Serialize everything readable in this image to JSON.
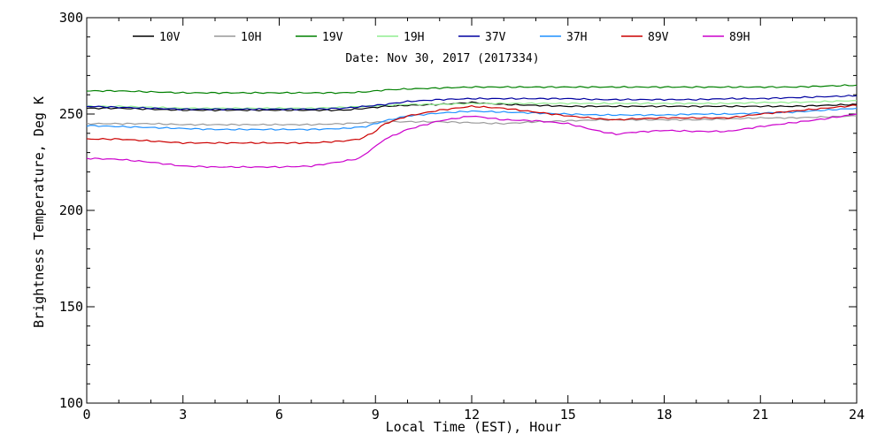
{
  "chart_data": {
    "type": "line",
    "title": "",
    "annotation": "Date: Nov 30, 2017 (2017334)",
    "xlabel": "Local Time (EST), Hour",
    "ylabel": "Brightness Temperature, Deg K",
    "xlim": [
      0,
      24
    ],
    "ylim": [
      100,
      300
    ],
    "xticks": [
      0,
      3,
      6,
      9,
      12,
      15,
      18,
      21,
      24
    ],
    "yticks": [
      100,
      150,
      200,
      250,
      300
    ],
    "grid": false,
    "legend_position": "top",
    "series": [
      {
        "name": "10V",
        "color": "#000000",
        "x": [
          0,
          1,
          2,
          3,
          4,
          5,
          6,
          7,
          8,
          8.7,
          9.3,
          10,
          11,
          12,
          13,
          14,
          15,
          16,
          17,
          18,
          19,
          20,
          21,
          22,
          23,
          24
        ],
        "y": [
          253,
          253,
          252.5,
          252,
          252,
          252,
          252,
          252,
          252,
          253,
          254,
          254.5,
          255,
          256,
          255,
          254.5,
          254,
          254,
          254,
          254,
          254,
          254,
          254,
          254,
          254.5,
          255
        ]
      },
      {
        "name": "10H",
        "color": "#999999",
        "x": [
          0,
          1,
          2,
          3,
          4,
          5,
          6,
          7,
          8,
          8.7,
          9.3,
          10,
          11,
          12,
          13,
          14,
          15,
          16,
          17,
          18,
          19,
          20,
          21,
          22,
          23,
          24
        ],
        "y": [
          245,
          245,
          245,
          244.5,
          244.5,
          244.5,
          244.5,
          244.5,
          245,
          245.5,
          246,
          246,
          246,
          245.5,
          245,
          246,
          246.5,
          247,
          247,
          247,
          247,
          247.5,
          248,
          248,
          248.5,
          249
        ]
      },
      {
        "name": "19V",
        "color": "#008000",
        "x": [
          0,
          1,
          2,
          3,
          4,
          5,
          6,
          7,
          8,
          8.7,
          9.3,
          10,
          11,
          12,
          13,
          14,
          15,
          16,
          17,
          18,
          19,
          20,
          21,
          22,
          23,
          24
        ],
        "y": [
          262,
          262,
          261.5,
          261,
          261,
          261,
          261,
          261,
          261,
          261.5,
          262.5,
          263,
          263.5,
          264,
          264,
          264,
          264,
          264,
          264,
          264,
          264,
          264,
          264,
          264,
          264.5,
          265
        ]
      },
      {
        "name": "19H",
        "color": "#90ee90",
        "x": [
          0,
          1,
          2,
          3,
          4,
          5,
          6,
          7,
          8,
          8.7,
          9.3,
          10,
          11,
          12,
          13,
          14,
          15,
          16,
          17,
          18,
          19,
          20,
          21,
          22,
          23,
          24
        ],
        "y": [
          254,
          254,
          253.5,
          253,
          253,
          253,
          253,
          253,
          253.5,
          254,
          254.5,
          255,
          255,
          255.5,
          255.5,
          255.5,
          255.5,
          255.5,
          255.5,
          255.5,
          255.5,
          255.5,
          256,
          256,
          256.5,
          257
        ]
      },
      {
        "name": "37V",
        "color": "#0000a0",
        "x": [
          0,
          1,
          2,
          3,
          4,
          5,
          6,
          7,
          8,
          8.7,
          9.3,
          10,
          11,
          12,
          13,
          14,
          15,
          16,
          17,
          18,
          19,
          20,
          21,
          22,
          23,
          24
        ],
        "y": [
          254,
          253.5,
          253,
          252.5,
          252.5,
          252.5,
          252.5,
          252.5,
          253,
          254,
          255,
          256.5,
          257.5,
          258,
          258,
          258,
          258,
          257.5,
          257.5,
          257.5,
          257.5,
          258,
          258,
          258.5,
          259,
          259.5
        ]
      },
      {
        "name": "37H",
        "color": "#1e90ff",
        "x": [
          0,
          1,
          2,
          3,
          4,
          5,
          6,
          7,
          8,
          8.7,
          9.3,
          10,
          11,
          12,
          13,
          14,
          15,
          16,
          17,
          18,
          19,
          20,
          21,
          22,
          23,
          24
        ],
        "y": [
          244,
          243.5,
          243,
          242.5,
          242,
          242,
          242,
          242,
          242.5,
          243.5,
          246.5,
          249,
          250.5,
          251.5,
          251,
          250.5,
          250,
          249.5,
          249.5,
          249.5,
          250,
          250,
          250.5,
          251,
          252,
          253
        ]
      },
      {
        "name": "89V",
        "color": "#cc0000",
        "x": [
          0,
          1,
          2,
          3,
          4,
          5,
          6,
          7,
          8,
          8.5,
          8.9,
          9.3,
          10,
          11,
          12,
          13,
          14,
          15,
          16,
          16.5,
          17,
          18,
          19,
          20,
          21,
          22,
          23,
          24
        ],
        "y": [
          237,
          237,
          236,
          235,
          235,
          235,
          235,
          235,
          236,
          237,
          240,
          245,
          249,
          252,
          254,
          253,
          251,
          249,
          247.5,
          247,
          247.5,
          248,
          248,
          248,
          250,
          251.5,
          253,
          254.5
        ]
      },
      {
        "name": "89H",
        "color": "#cc00cc",
        "x": [
          0,
          1,
          2,
          3,
          4,
          5,
          6,
          7,
          8,
          8.5,
          8.9,
          9.3,
          10,
          11,
          12,
          13,
          14,
          15,
          16,
          16.5,
          17,
          18,
          19,
          20,
          21,
          22,
          23,
          24
        ],
        "y": [
          227,
          226.5,
          225,
          223,
          222.5,
          222.5,
          222.5,
          223,
          225.5,
          227,
          232,
          237,
          242,
          246.5,
          249,
          247,
          246.5,
          245,
          241,
          239.5,
          240.5,
          241.5,
          241,
          241,
          243.5,
          245.5,
          247.5,
          250
        ]
      }
    ]
  }
}
